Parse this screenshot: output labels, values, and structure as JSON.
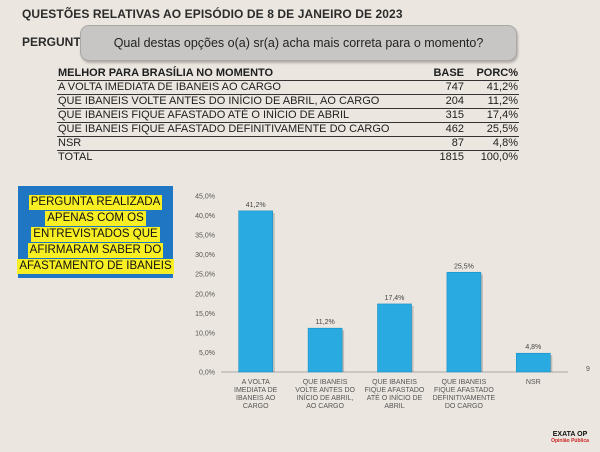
{
  "header": {
    "title": "QUESTÕES RELATIVAS AO EPISÓDIO DE 8 DE JANEIRO DE 2023",
    "question_label": "PERGUNTA",
    "question_text": "Qual destas opções o(a) sr(a) acha mais correta para o momento?"
  },
  "table": {
    "headers": [
      "MELHOR PARA BRASÍLIA NO MOMENTO",
      "BASE",
      "PORC%"
    ],
    "rows": [
      {
        "label": "A VOLTA IMEDIATA DE IBANEIS AO CARGO",
        "base": "747",
        "pct": "41,2%"
      },
      {
        "label": "QUE IBANEIS VOLTE ANTES DO INÍCIO DE ABRIL, AO CARGO",
        "base": "204",
        "pct": "11,2%"
      },
      {
        "label": "QUE IBANEIS FIQUE AFASTADO ATÉ O INÍCIO DE ABRIL",
        "base": "315",
        "pct": "17,4%"
      },
      {
        "label": "QUE IBANEIS FIQUE AFASTADO DEFINITIVAMENTE DO CARGO",
        "base": "462",
        "pct": "25,5%"
      },
      {
        "label": "NSR",
        "base": "87",
        "pct": "4,8%"
      }
    ],
    "total": {
      "label": "TOTAL",
      "base": "1815",
      "pct": "100,0%"
    }
  },
  "note": {
    "lines": [
      "PERGUNTA REALIZADA",
      "APENAS COM OS",
      "ENTREVISTADOS QUE",
      "AFIRMARAM SABER DO",
      "AFASTAMENTO DE IBANEIS"
    ],
    "background": "#1f77c4",
    "highlight": "#f7ee23"
  },
  "chart_data": {
    "type": "bar",
    "categories": [
      [
        "A VOLTA",
        "IMEDIATA DE",
        "IBANEIS AO",
        "CARGO"
      ],
      [
        "QUE IBANEIS",
        "VOLTE ANTES DO",
        "INÍCIO DE ABRIL,",
        "AO CARGO"
      ],
      [
        "QUE IBANEIS",
        "FIQUE AFASTADO",
        "ATÉ O INÍCIO DE",
        "ABRIL"
      ],
      [
        "QUE IBANEIS",
        "FIQUE AFASTADO",
        "DEFINITIVAMENTE",
        "DO CARGO"
      ],
      [
        "NSR"
      ]
    ],
    "values": [
      41.2,
      11.2,
      17.4,
      25.5,
      4.8
    ],
    "data_labels": [
      "41,2%",
      "11,2%",
      "17,4%",
      "25,5%",
      "4,8%"
    ],
    "yticks": [
      "0,0%",
      "5,0%",
      "10,0%",
      "15,0%",
      "20,0%",
      "25,0%",
      "30,0%",
      "35,0%",
      "40,0%",
      "45,0%"
    ],
    "ylim": [
      0,
      45
    ],
    "grid": false,
    "bar_color": "#29abe2"
  },
  "footer": {
    "page_number": "9",
    "logo_text": "EXATA OP",
    "logo_sub": "Opinião Pública"
  }
}
